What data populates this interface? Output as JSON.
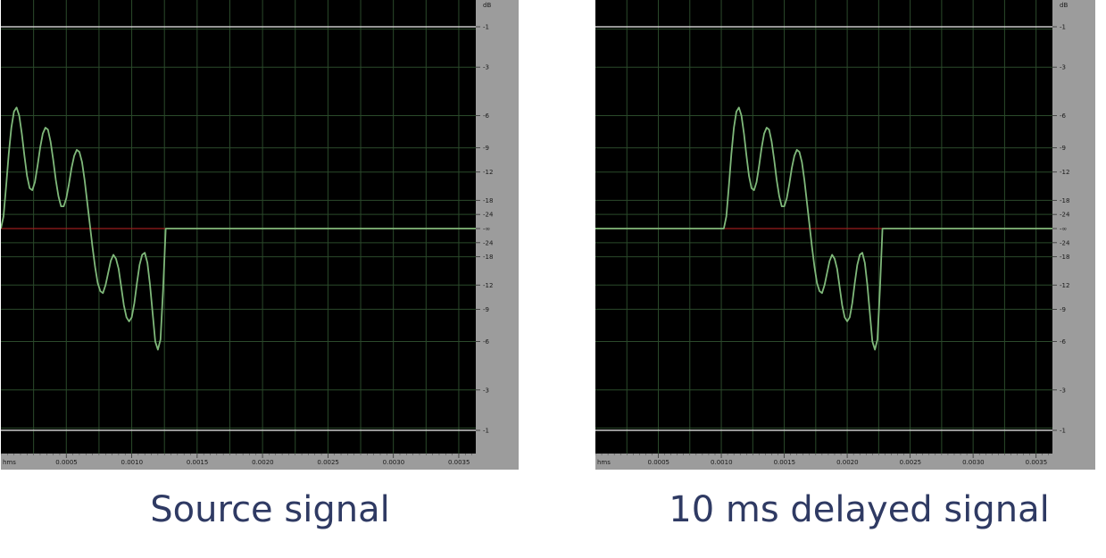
{
  "colors": {
    "plot_background": "#000000",
    "grid": "#2b4a2b",
    "waveform": "#7fb87a",
    "center_line": "#9a1c1c",
    "limit_line": "#c9c9c9",
    "ruler_background": "#9c9c9c"
  },
  "chart_data": [
    {
      "type": "line",
      "title": "Source signal",
      "xlabel": "",
      "ylabel": "",
      "x_unit": "hms",
      "x_tick_labels": [
        "0.0005",
        "0.0010",
        "0.0015",
        "0.0020",
        "0.0025",
        "0.0030",
        "0.0035"
      ],
      "x_ticks": [
        0.0005,
        0.001,
        0.0015,
        0.002,
        0.0025,
        0.003,
        0.0035
      ],
      "xlim": [
        0,
        0.00363
      ],
      "y_unit": "dB",
      "y_tick_labels": [
        "-1",
        "-3",
        "-6",
        "-9",
        "-12",
        "-18",
        "-24",
        "-∞",
        "-24",
        "-18",
        "-12",
        "-9",
        "-6",
        "-3",
        "-1"
      ],
      "ylim": [
        -1,
        1
      ],
      "grid": true,
      "series": [
        {
          "x": [
            0.0,
            2e-05,
            4e-05,
            6e-05,
            8e-05,
            0.0001,
            0.00012,
            0.00014,
            0.00016,
            0.00018,
            0.0002,
            0.00022,
            0.00024,
            0.00026,
            0.00028,
            0.0003,
            0.00032,
            0.00034,
            0.00036,
            0.00038,
            0.0004,
            0.00042,
            0.00044,
            0.00046,
            0.00048,
            0.0005,
            0.00052,
            0.00054,
            0.00056,
            0.00058,
            0.0006,
            0.00062,
            0.00064,
            0.00066,
            0.00068,
            0.0007,
            0.00072,
            0.00074,
            0.00076,
            0.00078,
            0.0008,
            0.00082,
            0.00084,
            0.00086,
            0.00088,
            0.0009,
            0.00092,
            0.00094,
            0.00096,
            0.00098,
            0.001,
            0.00102,
            0.00104,
            0.00106,
            0.00108,
            0.0011,
            0.00112,
            0.00114,
            0.00116,
            0.00118,
            0.0012,
            0.00122,
            0.00124,
            0.00126,
            0.00128,
            0.0013,
            0.00132,
            0.00134,
            0.00136,
            0.00138,
            0.0014,
            0.00142,
            0.00144,
            0.00146,
            0.00148,
            0.0015,
            0.00152,
            0.00154,
            0.00156,
            0.00158,
            0.0016,
            0.00162,
            0.00164,
            0.00166,
            0.00168,
            0.0017,
            0.00172,
            0.00174,
            0.00176,
            0.00178,
            0.0018,
            0.00182,
            0.00184,
            0.00186,
            0.00188,
            0.0019,
            0.00192,
            0.00194,
            0.00196,
            0.00198,
            0.002,
            0.00202,
            0.00204,
            0.00206,
            0.00208,
            0.0021,
            0.00212,
            0.00214,
            0.00216,
            0.00218,
            0.0022,
            0.00222,
            0.00224,
            0.00226,
            0.00228,
            0.0023,
            0.00363
          ],
          "y": [
            0.0,
            0.06,
            0.21,
            0.37,
            0.5,
            0.58,
            0.6,
            0.56,
            0.47,
            0.36,
            0.26,
            0.2,
            0.19,
            0.23,
            0.31,
            0.4,
            0.47,
            0.5,
            0.49,
            0.43,
            0.34,
            0.24,
            0.16,
            0.11,
            0.11,
            0.15,
            0.22,
            0.3,
            0.36,
            0.39,
            0.38,
            0.33,
            0.24,
            0.13,
            0.02,
            -0.09,
            -0.19,
            -0.27,
            -0.31,
            -0.32,
            -0.28,
            -0.22,
            -0.16,
            -0.13,
            -0.15,
            -0.2,
            -0.29,
            -0.38,
            -0.44,
            -0.46,
            -0.44,
            -0.37,
            -0.27,
            -0.18,
            -0.13,
            -0.12,
            -0.17,
            -0.28,
            -0.42,
            -0.56,
            -0.6,
            -0.55,
            -0.3,
            0.0,
            0.0,
            0.0,
            0.0,
            0.0,
            0.0,
            0.0,
            0.0,
            0.0,
            0.0,
            0.0,
            0.0,
            0.0,
            0.0,
            0.0,
            0.0,
            0.0,
            0.0,
            0.0,
            0.0,
            0.0,
            0.0,
            0.0,
            0.0,
            0.0,
            0.0,
            0.0,
            0.0,
            0.0,
            0.0,
            0.0,
            0.0,
            0.0,
            0.0,
            0.0,
            0.0,
            0.0,
            0.0,
            0.0,
            0.0,
            0.0,
            0.0,
            0.0,
            0.0,
            0.0,
            0.0,
            0.0,
            0.0,
            0.0,
            0.0,
            0.0,
            0.0,
            0.0,
            0.0
          ]
        }
      ]
    },
    {
      "type": "line",
      "title": "10 ms delayed signal",
      "xlabel": "",
      "ylabel": "",
      "x_unit": "hms",
      "x_tick_labels": [
        "0.0005",
        "0.0010",
        "0.0015",
        "0.0020",
        "0.0025",
        "0.0030",
        "0.0035"
      ],
      "x_ticks": [
        0.0005,
        0.001,
        0.0015,
        0.002,
        0.0025,
        0.003,
        0.0035
      ],
      "xlim": [
        0,
        0.00363
      ],
      "y_unit": "dB",
      "y_tick_labels": [
        "-1",
        "-3",
        "-6",
        "-9",
        "-12",
        "-18",
        "-24",
        "-∞",
        "-24",
        "-18",
        "-12",
        "-9",
        "-6",
        "-3",
        "-1"
      ],
      "ylim": [
        -1,
        1
      ],
      "grid": true,
      "series": [
        {
          "x": [
            0.0,
            0.00102,
            0.00104,
            0.00106,
            0.00108,
            0.0011,
            0.00112,
            0.00114,
            0.00116,
            0.00118,
            0.0012,
            0.00122,
            0.00124,
            0.00126,
            0.00128,
            0.0013,
            0.00132,
            0.00134,
            0.00136,
            0.00138,
            0.0014,
            0.00142,
            0.00144,
            0.00146,
            0.00148,
            0.0015,
            0.00152,
            0.00154,
            0.00156,
            0.00158,
            0.0016,
            0.00162,
            0.00164,
            0.00166,
            0.00168,
            0.0017,
            0.00172,
            0.00174,
            0.00176,
            0.00178,
            0.0018,
            0.00182,
            0.00184,
            0.00186,
            0.00188,
            0.0019,
            0.00192,
            0.00194,
            0.00196,
            0.00198,
            0.002,
            0.00202,
            0.00204,
            0.00206,
            0.00208,
            0.0021,
            0.00212,
            0.00214,
            0.00216,
            0.00218,
            0.0022,
            0.00222,
            0.00224,
            0.00226,
            0.00228,
            0.0023,
            0.00232,
            0.00234,
            0.00236,
            0.00238,
            0.0024,
            0.00242,
            0.00244,
            0.00246,
            0.00248,
            0.0025,
            0.00252,
            0.00254,
            0.00256,
            0.00258,
            0.0026,
            0.00262,
            0.00264,
            0.00266,
            0.00268,
            0.0027,
            0.00272,
            0.00274,
            0.00276,
            0.00278,
            0.0028,
            0.00282,
            0.00284,
            0.00286,
            0.00288,
            0.0029,
            0.00292,
            0.00294,
            0.00296,
            0.00298,
            0.003,
            0.00302,
            0.00304,
            0.00306,
            0.00308,
            0.0031,
            0.00312,
            0.00314,
            0.00316,
            0.00318,
            0.0032,
            0.00322,
            0.00324,
            0.00326,
            0.00328,
            0.0033,
            0.00332,
            0.00334,
            0.00336,
            0.00338,
            0.0034,
            0.00363
          ],
          "y": [
            0.0,
            0.0,
            0.06,
            0.21,
            0.37,
            0.5,
            0.58,
            0.6,
            0.56,
            0.47,
            0.36,
            0.26,
            0.2,
            0.19,
            0.23,
            0.31,
            0.4,
            0.47,
            0.5,
            0.49,
            0.43,
            0.34,
            0.24,
            0.16,
            0.11,
            0.11,
            0.15,
            0.22,
            0.3,
            0.36,
            0.39,
            0.38,
            0.33,
            0.24,
            0.13,
            0.02,
            -0.09,
            -0.19,
            -0.27,
            -0.31,
            -0.32,
            -0.28,
            -0.22,
            -0.16,
            -0.13,
            -0.15,
            -0.2,
            -0.29,
            -0.38,
            -0.44,
            -0.46,
            -0.44,
            -0.37,
            -0.27,
            -0.18,
            -0.13,
            -0.12,
            -0.17,
            -0.28,
            -0.42,
            -0.56,
            -0.6,
            -0.55,
            -0.3,
            0.0,
            0.0,
            0.0,
            0.0,
            0.0,
            0.0,
            0.0,
            0.0,
            0.0,
            0.0,
            0.0,
            0.0,
            0.0,
            0.0,
            0.0,
            0.0,
            0.0,
            0.0,
            0.0,
            0.0,
            0.0,
            0.0,
            0.0,
            0.0,
            0.0,
            0.0,
            0.0,
            0.0,
            0.0,
            0.0,
            0.0,
            0.0,
            0.0,
            0.0,
            0.0,
            0.0,
            0.0,
            0.0,
            0.0,
            0.0,
            0.0,
            0.0,
            0.0,
            0.0,
            0.0,
            0.0,
            0.0,
            0.0,
            0.0,
            0.0,
            0.0,
            0.0,
            0.0,
            0.0,
            0.0,
            0.0,
            0.0,
            0.0
          ]
        }
      ]
    }
  ]
}
